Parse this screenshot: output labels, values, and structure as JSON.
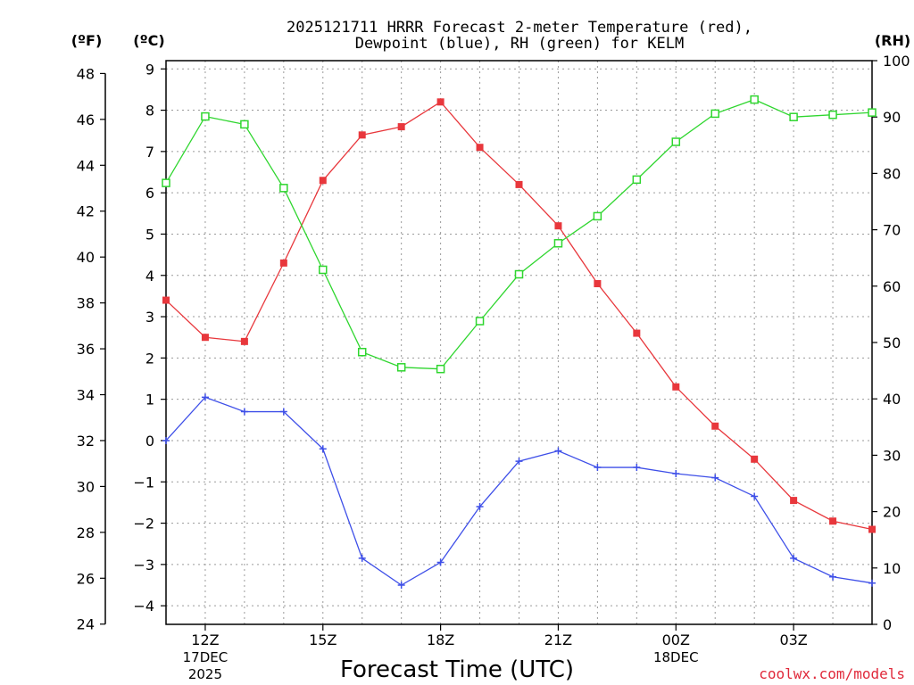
{
  "chart_data": {
    "type": "line",
    "title": [
      "2025121711 HRRR Forecast 2-meter Temperature (red),",
      "Dewpoint (blue), RH (green) for KELM"
    ],
    "xlabel": "Forecast Time (UTC)",
    "units": {
      "fahrenheit": "(ºF)",
      "celsius": "(ºC)",
      "rh": "(RH)"
    },
    "x_hours": [
      11,
      12,
      13,
      14,
      15,
      16,
      17,
      18,
      19,
      20,
      21,
      22,
      23,
      24,
      25,
      26,
      27,
      28,
      29
    ],
    "x_range": [
      11,
      29
    ],
    "x_ticks": [
      {
        "hour": 12,
        "label": "12Z"
      },
      {
        "hour": 15,
        "label": "15Z"
      },
      {
        "hour": 18,
        "label": "18Z"
      },
      {
        "hour": 21,
        "label": "21Z"
      },
      {
        "hour": 24,
        "label": "00Z"
      },
      {
        "hour": 27,
        "label": "03Z"
      }
    ],
    "date_labels": [
      {
        "hour": 12,
        "lines": [
          "17DEC",
          "2025"
        ]
      },
      {
        "hour": 24,
        "lines": [
          "18DEC"
        ]
      }
    ],
    "celsius_range": [
      -4.45,
      9.2
    ],
    "celsius_ticks": [
      -4,
      -3,
      -2,
      -1,
      0,
      1,
      2,
      3,
      4,
      5,
      6,
      7,
      8,
      9
    ],
    "fahrenheit_ticks": [
      24,
      26,
      28,
      30,
      32,
      34,
      36,
      38,
      40,
      42,
      44,
      46,
      48
    ],
    "rh_range": [
      0,
      100
    ],
    "rh_ticks": [
      0,
      10,
      20,
      30,
      40,
      50,
      60,
      70,
      80,
      90,
      100
    ],
    "series": [
      {
        "name": "Temperature",
        "axis": "celsius",
        "color": "#e8373c",
        "marker": "filled-square",
        "values": [
          3.4,
          2.5,
          2.4,
          4.3,
          6.3,
          7.4,
          7.6,
          8.2,
          7.1,
          6.2,
          5.2,
          3.8,
          2.6,
          1.3,
          0.35,
          -0.45,
          -1.45,
          -1.95,
          -2.15
        ]
      },
      {
        "name": "Dewpoint",
        "axis": "celsius",
        "color": "#3e4fe8",
        "marker": "plus",
        "values": [
          0.0,
          1.05,
          0.7,
          0.7,
          -0.2,
          -2.85,
          -3.5,
          -2.95,
          -1.6,
          -0.5,
          -0.25,
          -0.65,
          -0.65,
          -0.8,
          -0.9,
          -1.35,
          -2.85,
          -3.3,
          -3.45
        ]
      },
      {
        "name": "RH",
        "axis": "rh",
        "color": "#2fd62f",
        "marker": "open-square",
        "values": [
          78.3,
          90.1,
          88.7,
          77.4,
          62.9,
          48.3,
          45.6,
          45.3,
          53.8,
          62.1,
          67.6,
          72.4,
          78.9,
          85.6,
          90.6,
          93.1,
          90.0,
          90.4,
          90.8
        ]
      }
    ]
  },
  "credit": "coolwx.com/models"
}
